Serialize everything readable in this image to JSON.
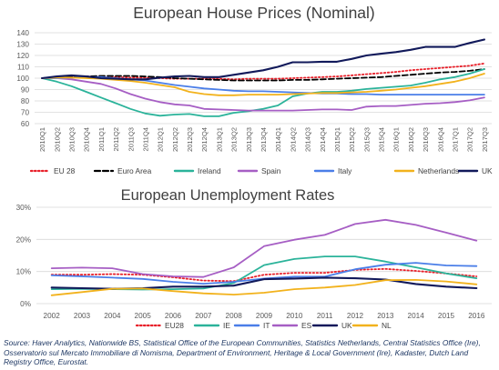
{
  "chart_data": [
    {
      "type": "line",
      "title": "European House Prices (Nominal)",
      "xlabel": "",
      "ylabel": "",
      "ylim": [
        60,
        140
      ],
      "yticks": [
        60,
        70,
        80,
        90,
        100,
        110,
        120,
        130,
        140
      ],
      "grid": "horizontal",
      "legend_position": "bottom",
      "categories": [
        "2010Q1",
        "2010Q2",
        "2010Q3",
        "2010Q4",
        "2011Q1",
        "2011Q2",
        "2011Q3",
        "2011Q4",
        "2012Q1",
        "2012Q2",
        "2012Q3",
        "2012Q4",
        "2013Q1",
        "2013Q2",
        "2013Q3",
        "2013Q4",
        "2014Q1",
        "2014Q2",
        "2014Q3",
        "2014Q4",
        "2015Q1",
        "2015Q2",
        "2015Q3",
        "2015Q4",
        "2016Q1",
        "2016Q2",
        "2016Q3",
        "2016Q4",
        "2017Q1",
        "2017Q2",
        "2017Q3"
      ],
      "series": [
        {
          "name": "EU 28",
          "color": "#e8202a",
          "dash": "dot",
          "values": [
            100,
            101,
            101.5,
            101.5,
            101,
            101,
            100.5,
            100.5,
            100,
            99.5,
            99.5,
            99.5,
            99.5,
            99,
            99.5,
            99.5,
            99.5,
            100,
            100.5,
            101,
            101.5,
            102.5,
            103.5,
            104.5,
            105.5,
            107,
            108,
            109,
            110,
            111,
            113
          ]
        },
        {
          "name": "Euro Area",
          "color": "#000000",
          "dash": "dash",
          "values": [
            100,
            101,
            101.5,
            101.5,
            102,
            102,
            102,
            101.5,
            101,
            100,
            99.5,
            99,
            98.5,
            98,
            98,
            98,
            98,
            98.5,
            98.5,
            99,
            99.5,
            100,
            100.5,
            101,
            102,
            103,
            104,
            105,
            105.5,
            106.5,
            108
          ]
        },
        {
          "name": "Ireland",
          "color": "#2bb39a",
          "dash": "solid",
          "values": [
            100,
            97,
            93,
            88,
            83,
            78,
            73,
            69,
            67,
            68,
            68.5,
            66.5,
            66.5,
            69.5,
            71,
            73,
            76,
            84,
            86.5,
            88,
            88,
            89,
            90.5,
            91.5,
            92.5,
            93.5,
            96,
            99,
            101,
            104,
            108
          ]
        },
        {
          "name": "Spain",
          "color": "#a65ec4",
          "dash": "solid",
          "values": [
            100,
            100,
            99,
            97,
            95,
            91,
            86,
            82,
            79,
            77,
            76,
            73,
            72.5,
            72,
            71.5,
            71.5,
            71.5,
            71.5,
            72,
            72.5,
            72.5,
            72,
            75,
            75.5,
            75.5,
            76.5,
            77.5,
            78,
            79,
            80.5,
            83
          ]
        },
        {
          "name": "Italy",
          "color": "#4a7ee8",
          "dash": "solid",
          "values": [
            100,
            100,
            100.5,
            101,
            101,
            100,
            99,
            98,
            96,
            94,
            92.5,
            91,
            90,
            89,
            88.5,
            88.5,
            88,
            87.5,
            87,
            86.5,
            86.5,
            86,
            86,
            85.5,
            85.5,
            85.5,
            85.5,
            85.5,
            85.5,
            85.5,
            85.5
          ]
        },
        {
          "name": "Netherlands",
          "color": "#f2b21c",
          "dash": "solid",
          "values": [
            100,
            100.5,
            100.5,
            100,
            99.5,
            98.5,
            97.5,
            96,
            94,
            92,
            88,
            86,
            85,
            85,
            85.5,
            85.5,
            85.5,
            86,
            86.5,
            87,
            87,
            87.5,
            88,
            89,
            90,
            91.5,
            93,
            95,
            97,
            100,
            104
          ]
        },
        {
          "name": "UK",
          "color": "#11195a",
          "dash": "solid",
          "values": [
            100,
            101.5,
            102.5,
            101.5,
            100,
            99.5,
            99,
            99,
            100.5,
            101.5,
            102,
            101,
            101,
            103,
            105,
            107,
            110,
            114,
            114,
            114.5,
            114.5,
            117,
            120,
            121.5,
            123,
            125,
            127.5,
            127.5,
            127.5,
            131,
            134
          ]
        }
      ]
    },
    {
      "type": "line",
      "title": "European Unemployment Rates",
      "xlabel": "",
      "ylabel": "",
      "ylim": [
        0,
        30
      ],
      "ytick_labels": [
        "0%",
        "10%",
        "20%",
        "30%"
      ],
      "grid": "horizontal",
      "legend_position": "bottom",
      "categories": [
        "2002",
        "2003",
        "2004",
        "2005",
        "2006",
        "2007",
        "2008",
        "2009",
        "2010",
        "2011",
        "2012",
        "2013",
        "2014",
        "2015",
        "2016"
      ],
      "series": [
        {
          "name": "EU28",
          "color": "#e8202a",
          "dash": "dot",
          "values": [
            9,
            9,
            9.2,
            9,
            8.2,
            7.2,
            7,
            9,
            9.6,
            9.6,
            10.5,
            10.8,
            10.2,
            9.4,
            8.5
          ]
        },
        {
          "name": "IE",
          "color": "#2bb39a",
          "dash": "solid",
          "values": [
            4.5,
            4.6,
            4.5,
            4.4,
            4.5,
            4.7,
            6.4,
            12,
            13.9,
            14.7,
            14.7,
            13.1,
            11.3,
            9.4,
            7.9
          ]
        },
        {
          "name": "IT",
          "color": "#4a7ee8",
          "dash": "solid",
          "values": [
            8.8,
            8.5,
            8.1,
            7.7,
            6.8,
            6.2,
            6.8,
            7.8,
            8.4,
            8.4,
            10.7,
            12.1,
            12.7,
            11.9,
            11.7
          ]
        },
        {
          "name": "ES",
          "color": "#a65ec4",
          "dash": "solid",
          "values": [
            11,
            11.2,
            11,
            9.2,
            8.5,
            8.3,
            11.3,
            17.9,
            19.9,
            21.4,
            24.8,
            26.1,
            24.5,
            22.1,
            19.6
          ]
        },
        {
          "name": "UK",
          "color": "#11195a",
          "dash": "solid",
          "values": [
            5,
            4.8,
            4.6,
            4.8,
            5.3,
            5.3,
            5.6,
            7.6,
            7.8,
            8.1,
            7.9,
            7.5,
            6.1,
            5.3,
            4.8
          ]
        },
        {
          "name": "NL",
          "color": "#f2b21c",
          "dash": "solid",
          "values": [
            2.6,
            3.6,
            4.6,
            4.7,
            3.9,
            3.2,
            2.8,
            3.4,
            4.5,
            5,
            5.8,
            7.3,
            7.4,
            6.9,
            6
          ]
        }
      ]
    }
  ],
  "source_text": "Source: Haver Analytics, Nationwide BS, Statistical Office of the European Communities,  Statistics Netherlands, Central Statistics Office (Ire), Osservatorio sul Mercato Immobiliare di Nomisma, Department of Environment, Heritage & Local Government (Ire), Kadaster, Dutch Land Registry Office, Eurostat."
}
